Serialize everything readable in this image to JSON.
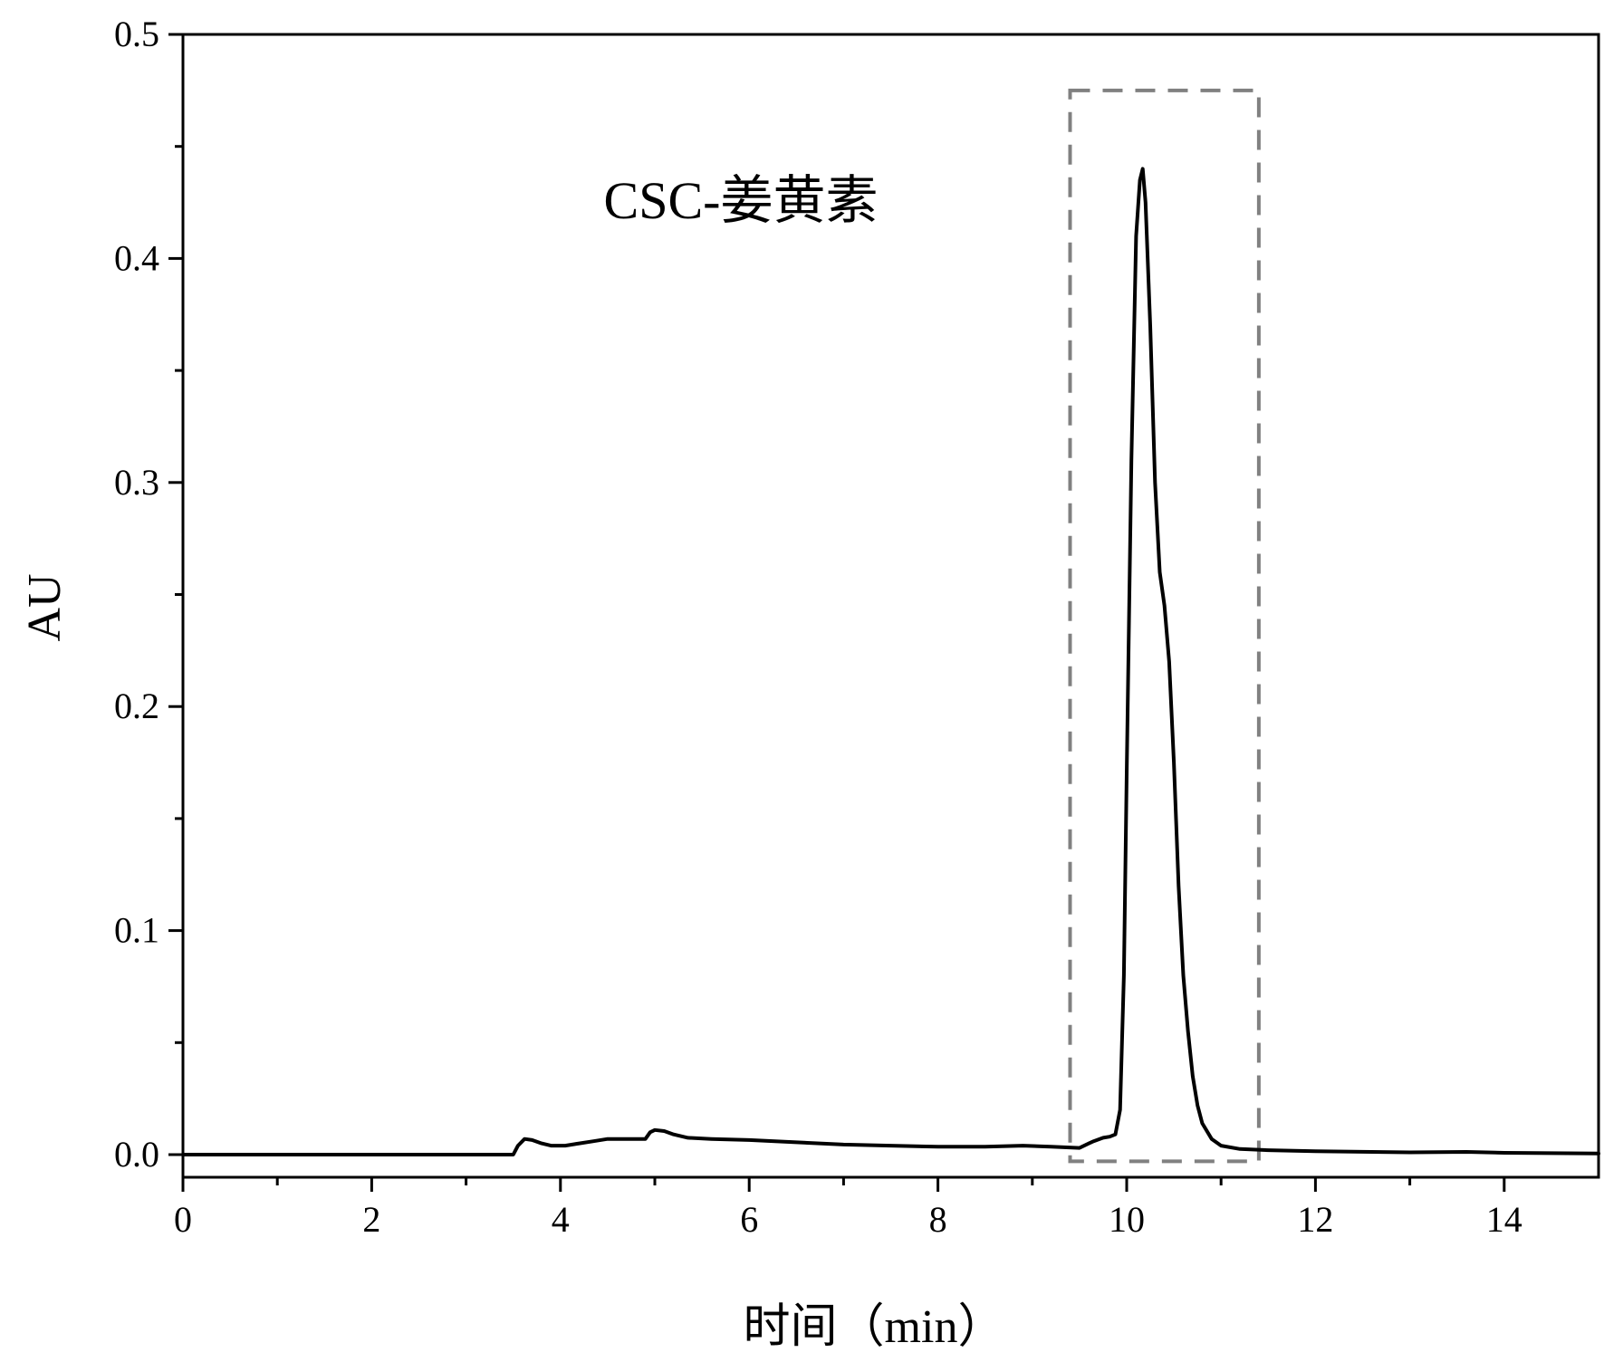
{
  "chart_data": {
    "type": "line",
    "title": "",
    "xlabel": "时间（min）",
    "ylabel": "AU",
    "xlim": [
      0,
      15
    ],
    "ylim": [
      -0.01,
      0.5
    ],
    "x_ticks": [
      0,
      2,
      4,
      6,
      8,
      10,
      12,
      14
    ],
    "x_tick_labels": [
      "0",
      "2",
      "4",
      "6",
      "8",
      "10",
      "12",
      "14"
    ],
    "y_ticks": [
      0.0,
      0.1,
      0.2,
      0.3,
      0.4,
      0.5
    ],
    "y_tick_labels": [
      "0.0",
      "0.1",
      "0.2",
      "0.3",
      "0.4",
      "0.5"
    ],
    "grid": false,
    "legend": "none",
    "annotation": "CSC-姜黄素",
    "highlight_box": {
      "x": [
        9.4,
        11.4
      ],
      "y": [
        -0.003,
        0.475
      ],
      "style": "dashed",
      "color": "#808080"
    },
    "line_color": "#000000",
    "series": [
      {
        "x": [
          0,
          1,
          2,
          3,
          3.5,
          3.55,
          3.62,
          3.7,
          3.8,
          3.9,
          4.05,
          4.2,
          4.35,
          4.5,
          4.7,
          4.9,
          4.95,
          5.0,
          5.1,
          5.2,
          5.35,
          5.6,
          6.0,
          6.5,
          7.0,
          7.5,
          8.0,
          8.5,
          8.9,
          9.2,
          9.5,
          9.6,
          9.65,
          9.75,
          9.82,
          9.88,
          9.93,
          9.97,
          10.0,
          10.05,
          10.1,
          10.14,
          10.17,
          10.2,
          10.25,
          10.3,
          10.35,
          10.4,
          10.45,
          10.5,
          10.55,
          10.6,
          10.65,
          10.7,
          10.75,
          10.8,
          10.9,
          11.0,
          11.2,
          11.5,
          12.0,
          13.0,
          13.6,
          14.0,
          15.0
        ],
        "y": [
          0.0,
          0.0,
          0.0,
          0.0,
          0.0,
          0.004,
          0.007,
          0.0065,
          0.005,
          0.004,
          0.004,
          0.005,
          0.006,
          0.007,
          0.007,
          0.007,
          0.01,
          0.011,
          0.0105,
          0.009,
          0.0075,
          0.007,
          0.0065,
          0.0055,
          0.0045,
          0.004,
          0.0035,
          0.0035,
          0.004,
          0.0035,
          0.003,
          0.005,
          0.006,
          0.0075,
          0.008,
          0.009,
          0.02,
          0.08,
          0.17,
          0.31,
          0.41,
          0.435,
          0.44,
          0.425,
          0.37,
          0.3,
          0.26,
          0.245,
          0.22,
          0.175,
          0.12,
          0.08,
          0.055,
          0.035,
          0.022,
          0.014,
          0.007,
          0.004,
          0.0025,
          0.002,
          0.0015,
          0.001,
          0.0012,
          0.0008,
          0.0005
        ]
      }
    ]
  }
}
